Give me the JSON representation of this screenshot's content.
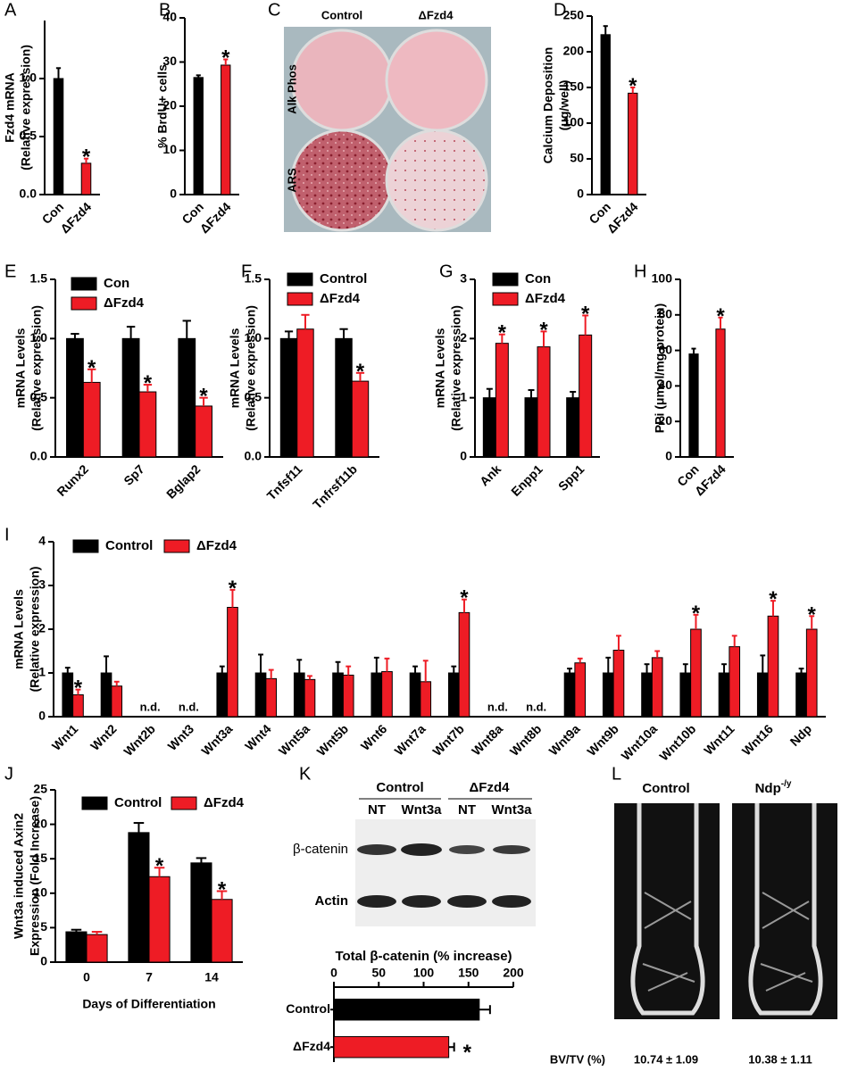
{
  "chart_data": [
    {
      "label": "A",
      "type": "bar",
      "ylabel": [
        "Fzd4 mRNA",
        "(Relative expression)"
      ],
      "categories": [
        "Con",
        "ΔFzd4"
      ],
      "values": [
        1.0,
        0.27
      ],
      "errors": [
        0.09,
        0.04
      ],
      "colors": [
        "#000000",
        "#ee1c25"
      ],
      "significant": [
        false,
        true
      ],
      "significance_mark": "*",
      "ylim": [
        0,
        1.5
      ],
      "yticks": [
        {
          "value": 0,
          "label": "0.0"
        },
        {
          "value": 0.5,
          "label": "0.5"
        },
        {
          "value": 1,
          "label": "1.0"
        }
      ]
    },
    {
      "label": "B",
      "type": "bar",
      "ylabel": [
        "% BrdU+ cells"
      ],
      "categories": [
        "Con",
        "ΔFzd4"
      ],
      "values": [
        26.5,
        29.3
      ],
      "errors": [
        0.5,
        1.3
      ],
      "colors": [
        "#000000",
        "#ee1c25"
      ],
      "significant": [
        false,
        true
      ],
      "significance_mark": "*",
      "ylim": [
        0,
        40
      ],
      "yticks": [
        0,
        10,
        20,
        30,
        40
      ]
    },
    {
      "label": "C",
      "type": "image",
      "columns": [
        "Control",
        "ΔFzd4"
      ],
      "rows": [
        "Alk Phos",
        "ARS"
      ]
    },
    {
      "label": "D",
      "type": "bar",
      "ylabel": [
        "Calcium Deposition",
        "(μg/well)"
      ],
      "categories": [
        "Con",
        "ΔFzd4"
      ],
      "values": [
        224,
        142
      ],
      "errors": [
        12,
        8
      ],
      "colors": [
        "#000000",
        "#ee1c25"
      ],
      "significant": [
        false,
        true
      ],
      "significance_mark": "*",
      "ylim": [
        0,
        250
      ],
      "yticks": [
        0,
        50,
        100,
        150,
        200,
        250
      ]
    },
    {
      "label": "E",
      "type": "bar",
      "ylabel": [
        "mRNA Levels",
        "(Relative expression)"
      ],
      "categories": [
        "Runx2",
        "Sp7",
        "Bglap2"
      ],
      "series": [
        {
          "name": "Con",
          "color": "#000000",
          "values": [
            1,
            1,
            1
          ],
          "errors": [
            0.04,
            0.1,
            0.15
          ],
          "significant": [
            false,
            false,
            false
          ]
        },
        {
          "name": "ΔFzd4",
          "color": "#ee1c25",
          "values": [
            0.63,
            0.55,
            0.43
          ],
          "errors": [
            0.11,
            0.06,
            0.07
          ],
          "significant": [
            true,
            true,
            true
          ]
        }
      ],
      "significance_mark": "*",
      "ylim": [
        0,
        1.5
      ],
      "yticks": [
        {
          "value": 0,
          "label": "0.0"
        },
        {
          "value": 0.5,
          "label": "0.5"
        },
        {
          "value": 1,
          "label": "1.0"
        },
        {
          "value": 1.5,
          "label": "1.5"
        }
      ]
    },
    {
      "label": "F",
      "type": "bar",
      "ylabel": [
        "mRNA Levels",
        "(Relative expression)"
      ],
      "categories": [
        "Tnfsf11",
        "Tnfrsf11b"
      ],
      "series": [
        {
          "name": "Control",
          "color": "#000000",
          "values": [
            1,
            1
          ],
          "errors": [
            0.06,
            0.08
          ],
          "significant": [
            false,
            false
          ]
        },
        {
          "name": "ΔFzd4",
          "color": "#ee1c25",
          "values": [
            1.08,
            0.64
          ],
          "errors": [
            0.12,
            0.07
          ],
          "significant": [
            false,
            true
          ]
        }
      ],
      "significance_mark": "*",
      "ylim": [
        0,
        1.5
      ],
      "yticks": [
        {
          "value": 0,
          "label": "0.0"
        },
        {
          "value": 0.5,
          "label": "0.5"
        },
        {
          "value": 1,
          "label": "1.0"
        },
        {
          "value": 1.5,
          "label": "1.5"
        }
      ]
    },
    {
      "label": "G",
      "type": "bar",
      "ylabel": [
        "mRNA Levels",
        "(Relative expression)"
      ],
      "categories": [
        "Ank",
        "Enpp1",
        "Spp1"
      ],
      "series": [
        {
          "name": "Con",
          "color": "#000000",
          "values": [
            1,
            1,
            1
          ],
          "errors": [
            0.15,
            0.13,
            0.1
          ],
          "significant": [
            false,
            false,
            false
          ]
        },
        {
          "name": "ΔFzd4",
          "color": "#ee1c25",
          "values": [
            1.92,
            1.86,
            2.06
          ],
          "errors": [
            0.15,
            0.26,
            0.33
          ],
          "significant": [
            true,
            true,
            true
          ]
        }
      ],
      "significance_mark": "*",
      "ylim": [
        0,
        3
      ],
      "yticks": [
        0,
        1,
        2,
        3
      ]
    },
    {
      "label": "H",
      "type": "bar",
      "ylabel": [
        "PPi (μmol/mg protein)"
      ],
      "categories": [
        "Con",
        "ΔFzd4"
      ],
      "values": [
        58,
        72
      ],
      "errors": [
        3,
        6.5
      ],
      "colors": [
        "#000000",
        "#ee1c25"
      ],
      "significant": [
        false,
        true
      ],
      "significance_mark": "*",
      "ylim": [
        0,
        100
      ],
      "yticks": [
        0,
        20,
        40,
        60,
        80,
        100
      ]
    },
    {
      "label": "I",
      "type": "bar",
      "ylabel": [
        "mRNA Levels",
        "(Relative expression)"
      ],
      "categories": [
        "Wnt1",
        "Wnt2",
        "Wnt2b",
        "Wnt3",
        "Wnt3a",
        "Wnt4",
        "Wnt5a",
        "Wnt5b",
        "Wnt6",
        "Wnt7a",
        "Wnt7b",
        "Wnt8a",
        "Wnt8b",
        "Wnt9a",
        "Wnt9b",
        "Wnt10a",
        "Wnt10b",
        "Wnt11",
        "Wnt16",
        "Ndp"
      ],
      "series": [
        {
          "name": "Control",
          "color": "#000000",
          "values": [
            1,
            1,
            null,
            null,
            1,
            1,
            1,
            1,
            1,
            1,
            1,
            null,
            null,
            1,
            1,
            1,
            1,
            1,
            1,
            1
          ],
          "errors": [
            0.12,
            0.38,
            null,
            null,
            0.15,
            0.42,
            0.3,
            0.25,
            0.35,
            0.15,
            0.15,
            null,
            null,
            0.1,
            0.35,
            0.2,
            0.2,
            0.2,
            0.4,
            0.1
          ],
          "significant": [
            false,
            false,
            false,
            false,
            false,
            false,
            false,
            false,
            false,
            false,
            false,
            false,
            false,
            false,
            false,
            false,
            false,
            false,
            false,
            false
          ]
        },
        {
          "name": "ΔFzd4",
          "color": "#ee1c25",
          "values": [
            0.5,
            0.7,
            null,
            null,
            2.5,
            0.87,
            0.85,
            0.95,
            1.03,
            0.8,
            2.38,
            null,
            null,
            1.23,
            1.52,
            1.35,
            2.0,
            1.6,
            2.3,
            2.0
          ],
          "errors": [
            0.12,
            0.1,
            null,
            null,
            0.4,
            0.2,
            0.08,
            0.2,
            0.3,
            0.48,
            0.3,
            null,
            null,
            0.1,
            0.33,
            0.15,
            0.33,
            0.25,
            0.35,
            0.3
          ],
          "significant": [
            true,
            false,
            false,
            false,
            true,
            false,
            false,
            false,
            false,
            false,
            true,
            false,
            false,
            false,
            false,
            false,
            true,
            false,
            true,
            true
          ]
        }
      ],
      "nd_label": "n.d.",
      "significance_mark": "*",
      "ylim": [
        0,
        4
      ],
      "yticks": [
        0,
        1,
        2,
        3,
        4
      ]
    },
    {
      "label": "J",
      "type": "bar",
      "ylabel": [
        "Wnt3a induced Axin2",
        "Expression (Fold Increase)"
      ],
      "xlabel": "Days of Differentiation",
      "categories": [
        "0",
        "7",
        "14"
      ],
      "series": [
        {
          "name": "Control",
          "color": "#000000",
          "values": [
            4.4,
            18.8,
            14.4
          ],
          "errors": [
            0.3,
            1.4,
            0.7
          ],
          "significant": [
            false,
            false,
            false
          ]
        },
        {
          "name": "ΔFzd4",
          "color": "#ee1c25",
          "values": [
            4.0,
            12.4,
            9.1
          ],
          "errors": [
            0.4,
            1.3,
            1.2
          ],
          "significant": [
            false,
            true,
            true
          ]
        }
      ],
      "significance_mark": "*",
      "ylim": [
        0,
        25
      ],
      "yticks": [
        0,
        5,
        10,
        15,
        20,
        25
      ]
    },
    {
      "label": "K",
      "type": "hbar",
      "blot": {
        "groups": [
          "Control",
          "ΔFzd4"
        ],
        "lanes": [
          "NT",
          "Wnt3a",
          "NT",
          "Wnt3a"
        ],
        "rows": [
          "β-catenin",
          "Actin"
        ]
      },
      "title": "Total β-catenin (% increase)",
      "categories": [
        "Control",
        "ΔFzd4"
      ],
      "values": [
        162,
        128
      ],
      "errors": [
        12,
        6
      ],
      "colors": [
        "#000000",
        "#ee1c25"
      ],
      "significant": [
        false,
        true
      ],
      "significance_mark": "*",
      "xlim": [
        0,
        200
      ],
      "xticks": [
        0,
        50,
        100,
        150,
        200
      ]
    },
    {
      "label": "L",
      "type": "image",
      "columns": [
        {
          "name": "Control"
        },
        {
          "name": "Ndp",
          "superscript": "-/y"
        }
      ],
      "measure_label": "BV/TV (%)",
      "measures": [
        "10.74 ± 1.09",
        "10.38 ± 1.11"
      ]
    }
  ]
}
